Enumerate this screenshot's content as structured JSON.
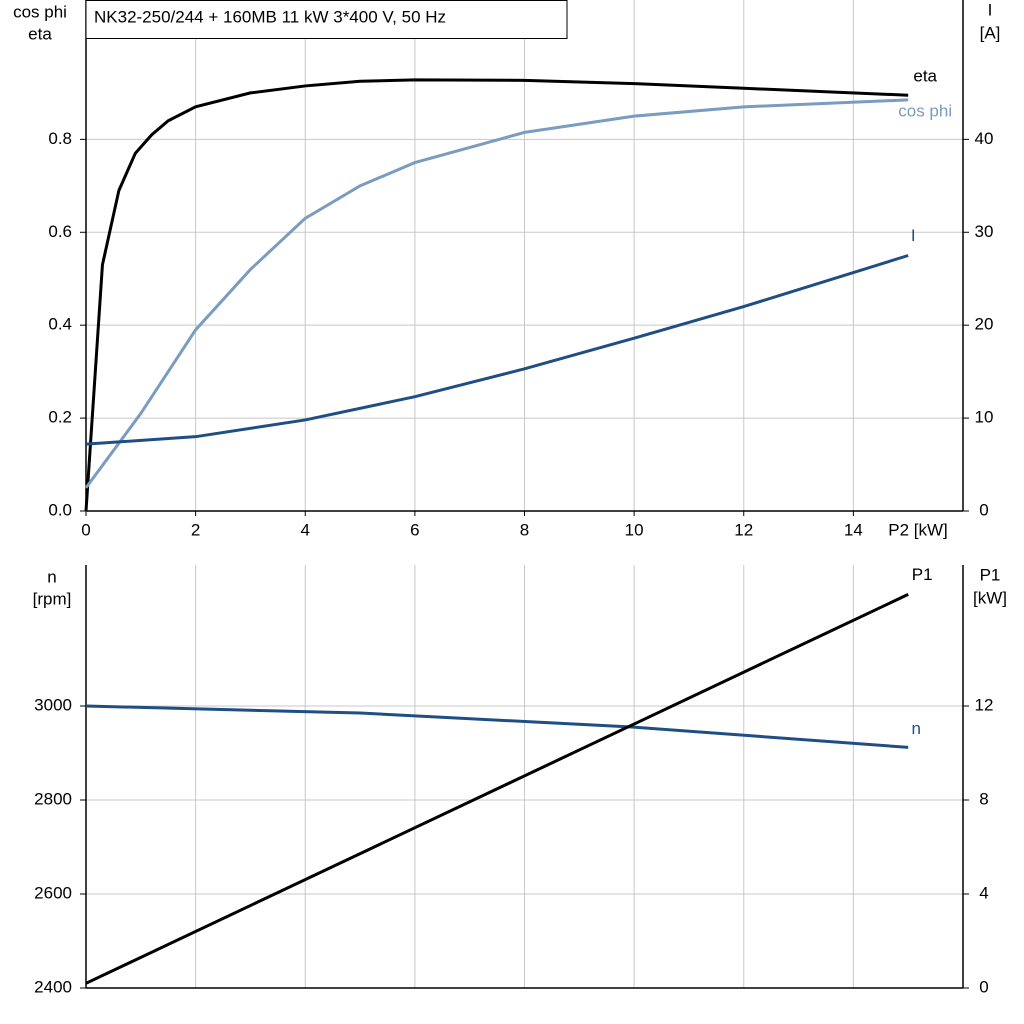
{
  "chart_data": [
    {
      "type": "line",
      "title": "NK32-250/244 + 160MB   11 kW   3*400 V, 50 Hz",
      "xlabel": "P2 [kW]",
      "ylabel": [
        "cos phi",
        "eta"
      ],
      "y2label": [
        "I",
        "[A]"
      ],
      "xlim": [
        0,
        16
      ],
      "xticks": [
        0,
        2,
        4,
        6,
        8,
        10,
        12,
        14
      ],
      "ylim": [
        0,
        1.1
      ],
      "yticks": [
        {
          "value": 0,
          "label": "0.0"
        },
        0.2,
        0.4,
        0.6,
        0.8
      ],
      "y2lim": [
        0,
        55
      ],
      "y2ticks": [
        0,
        10,
        20,
        30,
        40
      ],
      "grid": true,
      "series": [
        {
          "name": "eta",
          "color": "#000000",
          "x": [
            0,
            0.3,
            0.6,
            0.9,
            1.2,
            1.5,
            2,
            3,
            4,
            5,
            6,
            8,
            10,
            12,
            15
          ],
          "values": [
            0,
            0.53,
            0.69,
            0.77,
            0.81,
            0.84,
            0.87,
            0.9,
            0.915,
            0.925,
            0.928,
            0.927,
            0.92,
            0.91,
            0.895
          ]
        },
        {
          "name": "cos phi",
          "color": "#7a9cc0",
          "x": [
            0,
            1,
            2,
            3,
            4,
            5,
            6,
            8,
            10,
            12,
            15
          ],
          "values": [
            0.05,
            0.21,
            0.39,
            0.52,
            0.63,
            0.7,
            0.75,
            0.815,
            0.85,
            0.87,
            0.885
          ]
        },
        {
          "name": "I",
          "color": "#1f4e84",
          "axis": "y2",
          "x": [
            0,
            2,
            4,
            6,
            8,
            10,
            12,
            15
          ],
          "values": [
            7.2,
            8,
            9.8,
            12.3,
            15.3,
            18.6,
            22,
            27.5
          ]
        }
      ]
    },
    {
      "type": "line",
      "ylabel": [
        "n",
        "[rpm]"
      ],
      "y2label": [
        "P1",
        "[kW]"
      ],
      "xlim": [
        0,
        16
      ],
      "ylim": [
        2400,
        3300
      ],
      "yticks": [
        2400,
        2600,
        2800,
        3000
      ],
      "y2lim": [
        0,
        18
      ],
      "y2ticks": [
        0,
        4,
        8,
        12
      ],
      "grid": true,
      "series": [
        {
          "name": "n",
          "color": "#1f4e84",
          "x": [
            0,
            5,
            10,
            15
          ],
          "values": [
            3000,
            2985,
            2955,
            2912
          ]
        },
        {
          "name": "P1",
          "color": "#000000",
          "axis": "y2",
          "x": [
            0,
            15
          ],
          "values": [
            0.2,
            16.75
          ]
        }
      ]
    }
  ]
}
